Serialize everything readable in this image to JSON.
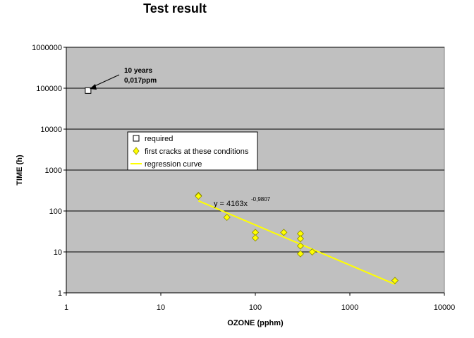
{
  "chart_data": {
    "type": "scatter",
    "title": "Test result",
    "xlabel": "OZONE (pphm)",
    "ylabel": "TIME (h)",
    "x_scale": "log",
    "y_scale": "log",
    "xlim": [
      1,
      10000
    ],
    "ylim": [
      1,
      1000000
    ],
    "x_ticks": [
      "1",
      "10",
      "100",
      "1000",
      "10000"
    ],
    "y_ticks": [
      "1",
      "10",
      "100",
      "1000",
      "10000",
      "100000",
      "1000000"
    ],
    "grid": "horizontal",
    "legend_position": "center-left",
    "background_color": "#c0c0c0",
    "series": [
      {
        "name": "required",
        "marker": "square",
        "color": "#ffffff",
        "points": [
          [
            1.7,
            87600
          ]
        ]
      },
      {
        "name": "first cracks at these conditions",
        "marker": "diamond",
        "color": "#ffff00",
        "points": [
          [
            25,
            240
          ],
          [
            25,
            230
          ],
          [
            50,
            70
          ],
          [
            100,
            30
          ],
          [
            100,
            22
          ],
          [
            200,
            30
          ],
          [
            300,
            28
          ],
          [
            300,
            21
          ],
          [
            300,
            14
          ],
          [
            300,
            9
          ],
          [
            400,
            10
          ],
          [
            3000,
            2
          ]
        ]
      },
      {
        "name": "regression curve",
        "type": "line",
        "color": "#ffff00",
        "x_range": [
          25,
          3000
        ],
        "coefficient": 4163,
        "exponent": -0.9807
      }
    ],
    "annotations": {
      "point_label_line1": "10 years",
      "point_label_line2": "0,017ppm",
      "equation_main": "y = 4163x",
      "equation_exponent": "-0,9807"
    }
  }
}
